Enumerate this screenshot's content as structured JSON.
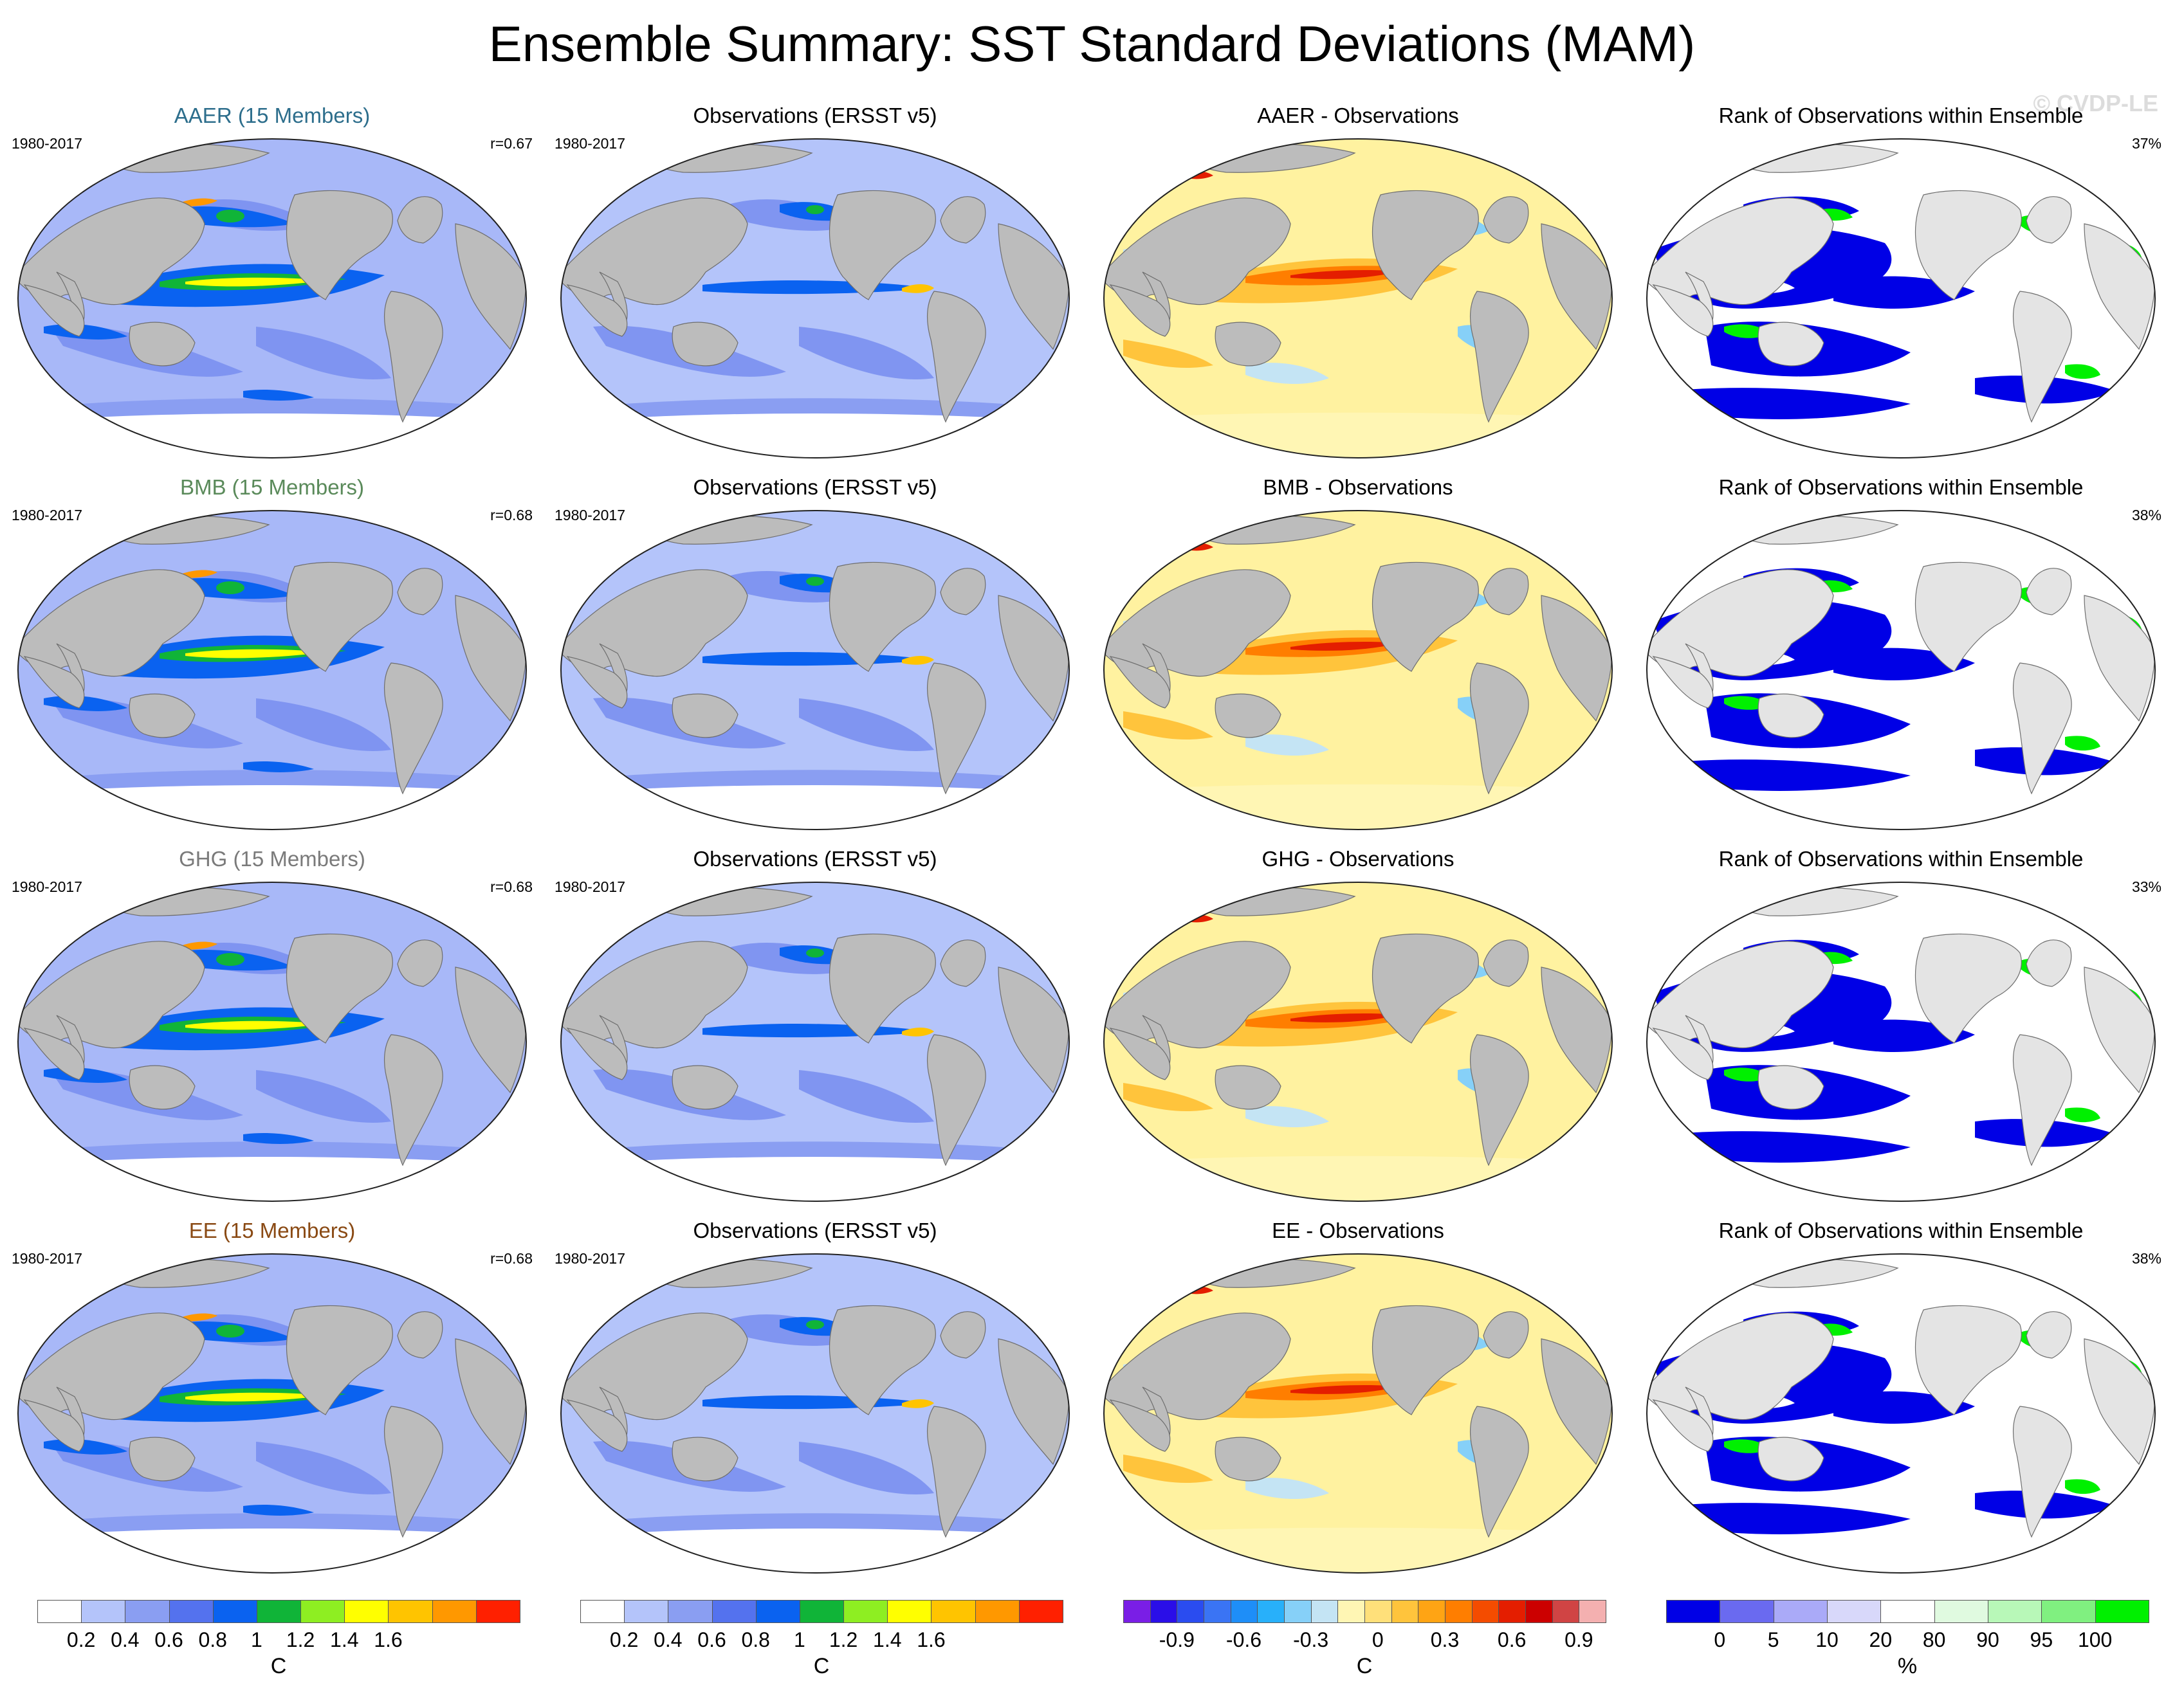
{
  "title": "Ensemble Summary: SST Standard Deviations (MAM)",
  "watermark": "© CVDP-LE",
  "colors": {
    "land": "#bcbcbc",
    "ocean_std": "#a8b8f8",
    "ocean_obs": "#b4c4fa",
    "diff_base": "#fff2a0",
    "rank_base": "#ffffff",
    "rank_low": "#0000e6",
    "rank_high": "#00f000"
  },
  "rows": [
    {
      "model": {
        "title": "AAER (15 Members)",
        "title_color": "#2d6e8c",
        "period": "1980-2017",
        "r": "r=0.67"
      },
      "obs": {
        "title": "Observations (ERSST v5)",
        "period": "1980-2017"
      },
      "diff": {
        "title": "AAER - Observations"
      },
      "rank": {
        "title": "Rank of Observations within Ensemble",
        "pct": "37%"
      }
    },
    {
      "model": {
        "title": "BMB (15 Members)",
        "title_color": "#5a8a5a",
        "period": "1980-2017",
        "r": "r=0.68"
      },
      "obs": {
        "title": "Observations (ERSST v5)",
        "period": "1980-2017"
      },
      "diff": {
        "title": "BMB - Observations"
      },
      "rank": {
        "title": "Rank of Observations within Ensemble",
        "pct": "38%"
      }
    },
    {
      "model": {
        "title": "GHG (15 Members)",
        "title_color": "#7a7a7a",
        "period": "1980-2017",
        "r": "r=0.68"
      },
      "obs": {
        "title": "Observations (ERSST v5)",
        "period": "1980-2017"
      },
      "diff": {
        "title": "GHG - Observations"
      },
      "rank": {
        "title": "Rank of Observations within Ensemble",
        "pct": "33%"
      }
    },
    {
      "model": {
        "title": "EE (15 Members)",
        "title_color": "#8a4a14",
        "period": "1980-2017",
        "r": "r=0.68"
      },
      "obs": {
        "title": "Observations (ERSST v5)",
        "period": "1980-2017"
      },
      "diff": {
        "title": "EE - Observations"
      },
      "rank": {
        "title": "Rank of Observations within Ensemble",
        "pct": "38%"
      }
    }
  ],
  "legends": [
    {
      "unit": "C",
      "colors": [
        "#ffffff",
        "#b4c4fa",
        "#8a9ef2",
        "#5472ee",
        "#0a62f0",
        "#10b438",
        "#8eee22",
        "#ffff00",
        "#ffc400",
        "#ff9800",
        "#ff2000"
      ],
      "labels": [
        "0.2",
        "0.4",
        "0.6",
        "0.8",
        "1",
        "1.2",
        "1.4",
        "1.6"
      ]
    },
    {
      "unit": "C",
      "colors": [
        "#ffffff",
        "#b4c4fa",
        "#8a9ef2",
        "#5472ee",
        "#0a62f0",
        "#10b438",
        "#8eee22",
        "#ffff00",
        "#ffc400",
        "#ff9800",
        "#ff2000"
      ],
      "labels": [
        "0.2",
        "0.4",
        "0.6",
        "0.8",
        "1",
        "1.2",
        "1.4",
        "1.6"
      ]
    },
    {
      "unit": "C",
      "colors": [
        "#7a1ee6",
        "#2a0ee8",
        "#2a4cf0",
        "#3a74f4",
        "#1e8ef8",
        "#28b0fa",
        "#86d0f8",
        "#c4e4f4",
        "#fff6b4",
        "#ffe07a",
        "#ffc43c",
        "#ffa414",
        "#ff7e00",
        "#f44c00",
        "#e41e00",
        "#cc0000",
        "#d04444",
        "#f4b0b0"
      ],
      "labels": [
        "-0.9",
        "-0.6",
        "-0.3",
        "0",
        "0.3",
        "0.6",
        "0.9"
      ]
    },
    {
      "unit": "%",
      "colors": [
        "#0000e6",
        "#6a6af0",
        "#aaaaf8",
        "#d8d8fa",
        "#ffffff",
        "#e0fae0",
        "#b8f8b8",
        "#80f080",
        "#00f000"
      ],
      "labels": [
        "0",
        "5",
        "10",
        "20",
        "80",
        "90",
        "95",
        "100"
      ]
    }
  ]
}
